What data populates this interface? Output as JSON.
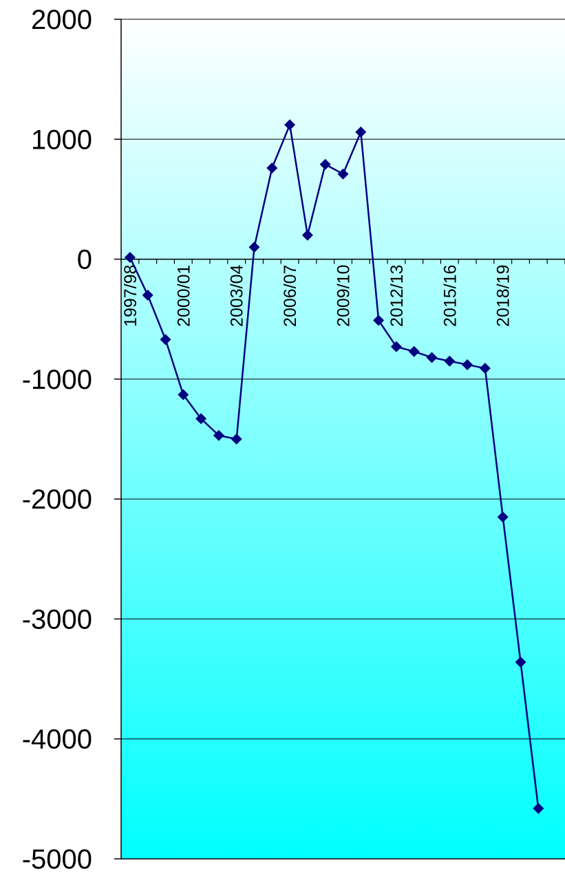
{
  "chart_data": {
    "type": "line",
    "title": "",
    "xlabel": "",
    "ylabel": "",
    "ylim": [
      -5000,
      2000
    ],
    "yticks": [
      "2000",
      "1000",
      "0",
      "-1000",
      "-2000",
      "-3000",
      "-4000",
      "-5000"
    ],
    "grid": true,
    "legend": "none",
    "x_tick_labels": [
      "1997/98",
      "2000/01",
      "2003/04",
      "2006/07",
      "2009/10",
      "2012/13",
      "2015/16",
      "2018/19"
    ],
    "x": [
      "1997/98",
      "1998/99",
      "1999/00",
      "2000/01",
      "2001/02",
      "2002/03",
      "2003/04",
      "2004/05",
      "2005/06",
      "2006/07",
      "2007/08",
      "2008/09",
      "2009/10",
      "2010/11",
      "2011/12",
      "2012/13",
      "2013/14",
      "2014/15",
      "2015/16",
      "2016/17",
      "2017/18",
      "2018/19",
      "2019/20",
      "2020/21",
      "2021/22"
    ],
    "series": [
      {
        "values": [
          15,
          -300,
          -670,
          -1130,
          -1330,
          -1470,
          -1500,
          100,
          760,
          1120,
          200,
          790,
          710,
          1060,
          -510,
          -730,
          -770,
          -820,
          -850,
          -880,
          -910,
          -2150,
          -3360,
          -4580,
          null
        ]
      }
    ]
  },
  "colors": {
    "line": "#000080",
    "marker": "#000080",
    "plot_bg_top": "#ffffff",
    "plot_bg_bottom": "#00ffff",
    "grid": "#000000",
    "axis": "#000000"
  }
}
